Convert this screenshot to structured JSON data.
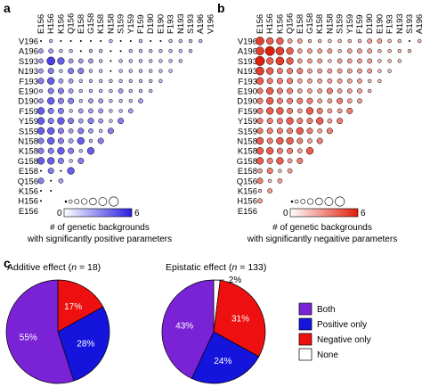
{
  "panel_labels": {
    "a": "a",
    "b": "b",
    "c": "c"
  },
  "residues": [
    "E156",
    "H156",
    "K156",
    "Q156",
    "E158",
    "G158",
    "K158",
    "N158",
    "S159",
    "Y159",
    "F159",
    "D190",
    "E190",
    "F193",
    "N193",
    "S193",
    "A196",
    "V196"
  ],
  "colors": {
    "blue": "#2a1ee0",
    "red": "#e01e0a",
    "both": "#7a22d6",
    "positive": "#1414dc",
    "negative": "#ee1010",
    "none": "#ffffff"
  },
  "colorbar": {
    "min": "0",
    "max": "6"
  },
  "chart_data": [
    {
      "type": "heatmap",
      "panel": "a",
      "caption_line1": "# of genetic backgrounds",
      "caption_line2": "with significantly positive parameters",
      "scale": [
        0,
        6
      ],
      "matrix_upper": [
        [
          1,
          1,
          1,
          1,
          0,
          0,
          1,
          0,
          0,
          1,
          0,
          0,
          0,
          0,
          0,
          1,
          0
        ],
        [
          1,
          1,
          1,
          1,
          1,
          1,
          1,
          0,
          0,
          1,
          1,
          0,
          1,
          1,
          2,
          2
        ],
        [
          1,
          1,
          1,
          1,
          1,
          1,
          1,
          0,
          1,
          2,
          2,
          2,
          4,
          5,
          2
        ],
        [
          1,
          1,
          1,
          1,
          1,
          1,
          0,
          1,
          1,
          3,
          3,
          1,
          3,
          2
        ],
        [
          1,
          1,
          1,
          1,
          1,
          1,
          1,
          1,
          1,
          2,
          2,
          4,
          3
        ],
        [
          1,
          1,
          1,
          2,
          1,
          1,
          1,
          1,
          2,
          3,
          3,
          1
        ],
        [
          2,
          1,
          1,
          1,
          2,
          2,
          1,
          3,
          3,
          4,
          2
        ],
        [
          2,
          1,
          1,
          2,
          2,
          2,
          1,
          3,
          3,
          4
        ],
        [
          3,
          1,
          2,
          3,
          2,
          3,
          4,
          3,
          4
        ],
        [
          3,
          1,
          2,
          3,
          2,
          3,
          4,
          4
        ],
        [
          3,
          1,
          4,
          2,
          3,
          4,
          3
        ],
        [
          4,
          1,
          3,
          4,
          3,
          3
        ],
        [
          3,
          1,
          3,
          4,
          4
        ],
        [
          4,
          0,
          3,
          0
        ],
        [
          2,
          0,
          3
        ],
        [
          0,
          0
        ],
        [
          0
        ]
      ]
    },
    {
      "type": "heatmap",
      "panel": "b",
      "caption_line1": "# of genetic backgrounds",
      "caption_line2": "with significantly negaitive parameters",
      "scale": [
        0,
        6
      ],
      "matrix_upper": [
        [
          1,
          0,
          1,
          1,
          2,
          2,
          1,
          1,
          1,
          1,
          1,
          1,
          2,
          2,
          4,
          4,
          5
        ],
        [
          1,
          1,
          1,
          1,
          2,
          2,
          2,
          1,
          2,
          2,
          2,
          2,
          4,
          5,
          6,
          5
        ],
        [
          1,
          1,
          1,
          2,
          2,
          2,
          2,
          1,
          2,
          2,
          2,
          4,
          5,
          4,
          6
        ],
        [
          1,
          1,
          2,
          2,
          2,
          2,
          2,
          2,
          2,
          3,
          3,
          3,
          4,
          5
        ],
        [
          1,
          1,
          2,
          2,
          2,
          2,
          2,
          2,
          2,
          3,
          3,
          3,
          4
        ],
        [
          1,
          2,
          2,
          2,
          3,
          2,
          2,
          2,
          3,
          3,
          4,
          3
        ],
        [
          2,
          2,
          3,
          2,
          2,
          3,
          3,
          3,
          3,
          4,
          3
        ],
        [
          3,
          2,
          2,
          3,
          4,
          2,
          3,
          4,
          4,
          3
        ],
        [
          3,
          2,
          4,
          3,
          3,
          4,
          3,
          3,
          3
        ],
        [
          3,
          2,
          3,
          4,
          3,
          3,
          3,
          3
        ],
        [
          3,
          2,
          3,
          4,
          4,
          3,
          4
        ],
        [
          4,
          2,
          3,
          3,
          4,
          4
        ],
        [
          3,
          2,
          4,
          3,
          4
        ],
        [
          2,
          1,
          3,
          2
        ],
        [
          2,
          1,
          3
        ],
        [
          2,
          1
        ],
        [
          2
        ]
      ]
    },
    {
      "type": "pie",
      "panel": "c-left",
      "title_prefix": "Additive effect (",
      "title_n": "n",
      "title_suffix": " = 18)",
      "slices": [
        {
          "name": "Negative only",
          "value": 17,
          "label": "17%"
        },
        {
          "name": "Positive only",
          "value": 28,
          "label": "28%"
        },
        {
          "name": "Both",
          "value": 55,
          "label": "55%"
        }
      ]
    },
    {
      "type": "pie",
      "panel": "c-right",
      "title_prefix": "Epistatic effect (",
      "title_n": "n",
      "title_suffix": " = 133)",
      "slices": [
        {
          "name": "None",
          "value": 2,
          "label": "2%"
        },
        {
          "name": "Negative only",
          "value": 31,
          "label": "31%"
        },
        {
          "name": "Positive only",
          "value": 24,
          "label": "24%"
        },
        {
          "name": "Both",
          "value": 43,
          "label": "43%"
        }
      ]
    }
  ],
  "legend": [
    {
      "name": "Both",
      "color": "#7a22d6"
    },
    {
      "name": "Positive only",
      "color": "#1414dc"
    },
    {
      "name": "Negative only",
      "color": "#ee1010"
    },
    {
      "name": "None",
      "color": "#ffffff"
    }
  ]
}
